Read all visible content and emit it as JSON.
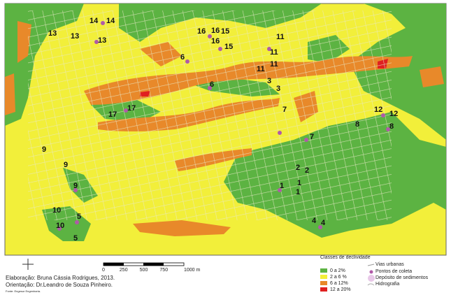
{
  "map": {
    "point_labels": [
      "14",
      "14",
      "13",
      "13",
      "13",
      "16",
      "16",
      "15",
      "16",
      "15",
      "11",
      "11",
      "11",
      "11",
      "6",
      "6",
      "3",
      "3",
      "17",
      "17",
      "7",
      "7",
      "12",
      "12",
      "8",
      "8",
      "9",
      "9",
      "9",
      "2",
      "2",
      "1",
      "1",
      "1",
      "10",
      "5",
      "10",
      "5",
      "4",
      "4"
    ],
    "scale": {
      "ticks": [
        "0",
        "250",
        "500",
        "750",
        "1000 m"
      ]
    },
    "credits": [
      "Elaboração: Bruna Cássia Rodrigues, 2013.",
      "Orientação: Dr.Leandro de Souza Pinheiro.",
      "Fonte: Engesur Engenharia."
    ],
    "legend": {
      "title": "Classes de declividade",
      "items": [
        "0 a 2%",
        "2 a 6 %",
        "6 a 12%",
        "12 a 20%"
      ]
    },
    "legend2": {
      "items": [
        "Vias urbanas",
        "Pontos de coleta",
        "Depósito de sedimentos",
        "Hidrografia"
      ]
    }
  }
}
